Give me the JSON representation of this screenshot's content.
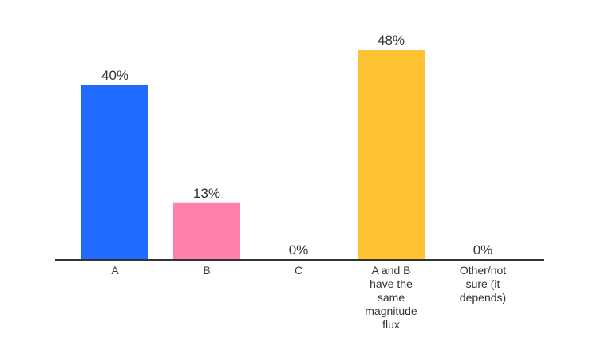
{
  "chart_data": {
    "type": "bar",
    "categories": [
      [
        "A"
      ],
      [
        "B"
      ],
      [
        "C"
      ],
      [
        "A and B",
        "have the",
        "same",
        "magnitude",
        "flux"
      ],
      [
        "Other/not",
        "sure (it",
        "depends)"
      ]
    ],
    "values": [
      40,
      13,
      0,
      48,
      0
    ],
    "value_labels": [
      "40%",
      "13%",
      "0%",
      "48%",
      "0%"
    ],
    "colors": [
      "#1f6bff",
      "#ff80aa",
      "#cccccc",
      "#ffc233",
      "#cccccc"
    ],
    "ylim": [
      0,
      50
    ],
    "grid": false,
    "legend": "none",
    "axis_color": "#333333"
  }
}
